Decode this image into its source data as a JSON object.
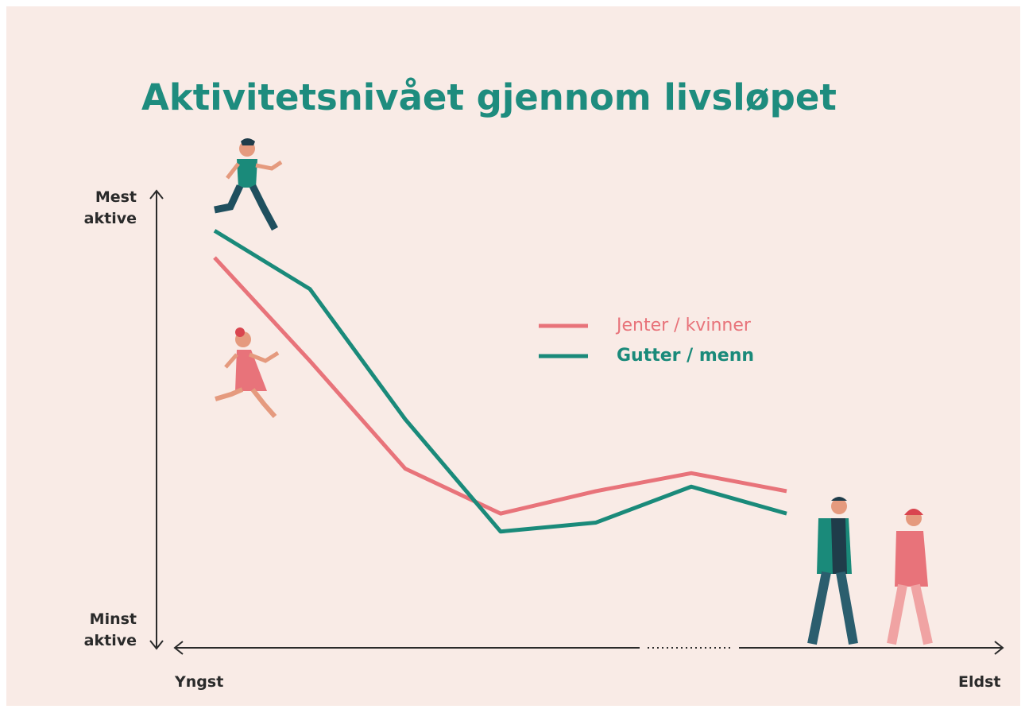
{
  "chart_data": {
    "type": "line",
    "title": "Aktivitetsnivået gjennom livsløpet",
    "categories": [
      null,
      null,
      null,
      null,
      null,
      null,
      null
    ],
    "series": [
      {
        "name": "Jenter / kvinner",
        "color": "#e8737a",
        "values": [
          86,
          63,
          39,
          29,
          34,
          38,
          34
        ]
      },
      {
        "name": "Gutter / menn",
        "color": "#1a8a7a",
        "values": [
          92,
          79,
          50,
          25,
          27,
          35,
          29
        ]
      }
    ],
    "ylim": [
      0,
      100
    ],
    "yticks": [
      {
        "value": 0,
        "label": "Minst aktive"
      },
      {
        "value": 100,
        "label": "Mest aktive"
      }
    ],
    "x_start_label": "Yngst",
    "x_end_label": "Eldst",
    "grid": false
  }
}
